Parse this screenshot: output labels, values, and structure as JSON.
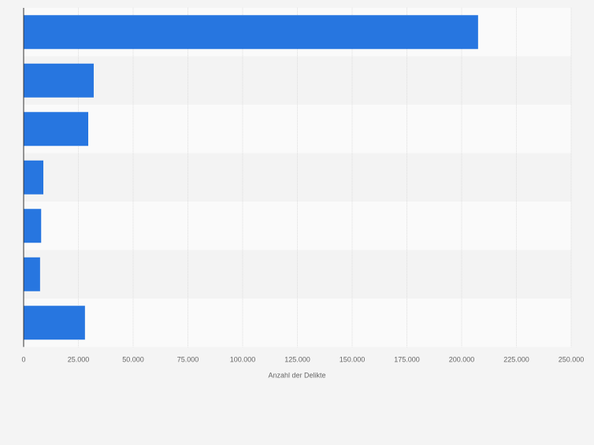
{
  "chart_data": {
    "type": "bar",
    "orientation": "horizontal",
    "title": "",
    "xlabel": "Anzahl der Delikte",
    "ylabel": "",
    "categories": [
      "",
      "",
      "",
      "",
      "",
      "",
      ""
    ],
    "values": [
      207500,
      32000,
      29500,
      9000,
      8000,
      7500,
      28000
    ],
    "xlim": [
      0,
      250000
    ],
    "x_ticks": [
      0,
      25000,
      50000,
      75000,
      100000,
      125000,
      150000,
      175000,
      200000,
      225000,
      250000
    ],
    "x_tick_labels": [
      "0",
      "25.000",
      "50.000",
      "75.000",
      "100.000",
      "125.000",
      "150.000",
      "175.000",
      "200.000",
      "225.000",
      "250.000"
    ],
    "grid": true,
    "colors": {
      "bar": "#2776e0",
      "background": "#f4f4f4",
      "band_light": "#fafafa",
      "band_dark": "#f3f3f3",
      "gridline": "#dddddd",
      "axis": "#333333",
      "text": "#666666"
    }
  }
}
